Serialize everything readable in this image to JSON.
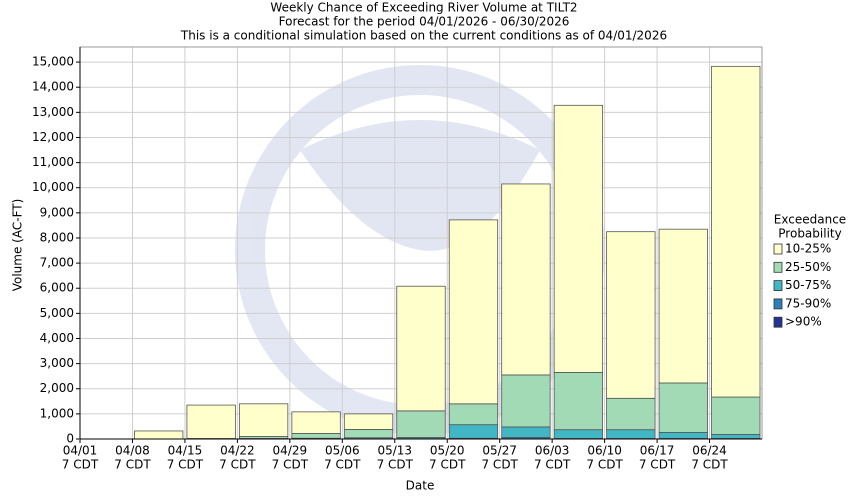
{
  "chart_data": {
    "type": "stacked_bar",
    "title": "Weekly Chance of Exceeding River Volume at TILT2",
    "subtitle": "Forecast for the period 04/01/2026 - 06/30/2026",
    "note": "This is a conditional simulation based on the current conditions as of 04/01/2026",
    "x_label": "Date",
    "y_label": "Volume (AC-FT)",
    "categories": [
      "04/01",
      "04/08",
      "04/15",
      "04/22",
      "04/29",
      "05/06",
      "05/13",
      "05/20",
      "05/27",
      "06/03",
      "06/10",
      "06/17",
      "06/24"
    ],
    "category_time": "7 CDT",
    "legend_title": [
      "Exceedance",
      "Probability"
    ],
    "series": [
      {
        "name": "10-25%",
        "color": "#ffffcc",
        "values": [
          0,
          320,
          1330,
          1300,
          860,
          620,
          4960,
          7320,
          7600,
          10630,
          6630,
          6120,
          13160
        ]
      },
      {
        "name": "25-50%",
        "color": "#a1dab4",
        "values": [
          0,
          0,
          20,
          80,
          190,
          330,
          1060,
          830,
          2070,
          2280,
          1250,
          1970,
          1490
        ]
      },
      {
        "name": "50-75%",
        "color": "#41b6c4",
        "values": [
          0,
          0,
          0,
          20,
          30,
          50,
          50,
          540,
          420,
          350,
          350,
          240,
          160
        ]
      },
      {
        "name": "75-90%",
        "color": "#2c7fb8",
        "values": [
          0,
          0,
          0,
          0,
          0,
          0,
          10,
          30,
          60,
          20,
          20,
          20,
          20
        ]
      },
      {
        "name": ">90%",
        "color": "#253494",
        "values": [
          0,
          0,
          0,
          0,
          0,
          0,
          0,
          0,
          0,
          0,
          0,
          0,
          0
        ]
      }
    ],
    "ylim": [
      0,
      15600
    ],
    "yticks": [
      0,
      {
        "value": 1000,
        "label": "1,000"
      },
      {
        "value": 2000,
        "label": "2,000"
      },
      {
        "value": 3000,
        "label": "3,000"
      },
      {
        "value": 4000,
        "label": "4,000"
      },
      {
        "value": 5000,
        "label": "5,000"
      },
      {
        "value": 6000,
        "label": "6,000"
      },
      {
        "value": 7000,
        "label": "7,000"
      },
      {
        "value": 8000,
        "label": "8,000"
      },
      {
        "value": 9000,
        "label": "9,000"
      },
      {
        "value": 10000,
        "label": "10,000"
      },
      {
        "value": 11000,
        "label": "11,000"
      },
      {
        "value": 12000,
        "label": "12,000"
      },
      {
        "value": 13000,
        "label": "13,000"
      },
      {
        "value": 14000,
        "label": "14,000"
      },
      {
        "value": 15000,
        "label": "15,000"
      }
    ],
    "grid": true
  }
}
